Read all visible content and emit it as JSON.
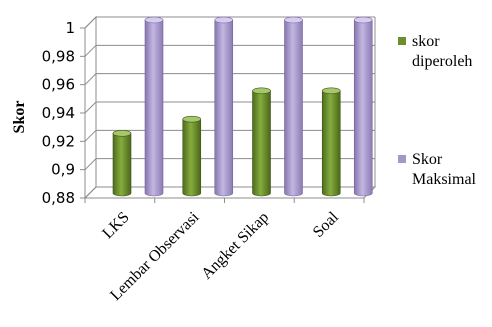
{
  "chart_data": {
    "type": "bar",
    "categories": [
      "LKS",
      "Lembar Observasi",
      "Angket Sikap",
      "Soal"
    ],
    "series": [
      {
        "name": "skor diperoleh",
        "values": [
          0.92,
          0.93,
          0.95,
          0.95
        ],
        "color": "#6b8e2f"
      },
      {
        "name": "Skor Maksimal",
        "values": [
          1,
          1,
          1,
          1
        ],
        "color": "#a596c9"
      }
    ],
    "ylabel": "Skor",
    "ylim": [
      0.88,
      1
    ],
    "yticks": [
      "0,88",
      "0,9",
      "0,92",
      "0,94",
      "0,96",
      "0,98",
      "1"
    ],
    "grid": true,
    "legend": {
      "position": "right",
      "entries": [
        [
          "skor",
          "diperoleh"
        ],
        [
          "Skor",
          "Maksimal"
        ]
      ]
    }
  }
}
